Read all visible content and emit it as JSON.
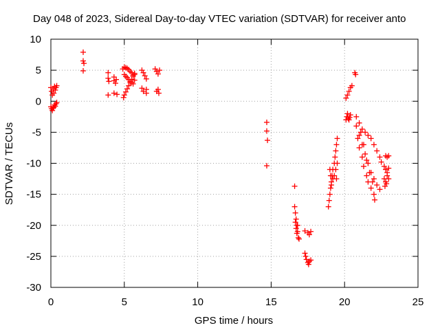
{
  "chart_data": {
    "type": "scatter",
    "title": "Day 048 of 2023, Sidereal Day-to-day VTEC variation (SDTVAR) for receiver anto",
    "xlabel": "GPS time / hours",
    "ylabel": "SDTVAR / TECUs",
    "xlim": [
      0,
      25
    ],
    "ylim": [
      -30,
      10
    ],
    "xticks": [
      0,
      5,
      10,
      15,
      20,
      25
    ],
    "xtick_labels": [
      "0",
      "5",
      "10",
      "15",
      "20",
      "25"
    ],
    "yticks": [
      10,
      5,
      0,
      -5,
      -10,
      -15,
      -20,
      -25,
      -30
    ],
    "ytick_labels": [
      "10",
      "5",
      "0",
      "-5",
      "-10",
      "-15",
      "-20",
      "-25",
      "-30"
    ],
    "grid": true,
    "marker": "+",
    "series": [
      {
        "name": "SDTVAR",
        "color": "#ff0000",
        "points": [
          [
            0.0,
            2.2
          ],
          [
            0.05,
            1.6
          ],
          [
            0.1,
            1.0
          ],
          [
            0.15,
            2.0
          ],
          [
            0.2,
            1.3
          ],
          [
            0.25,
            2.4
          ],
          [
            0.3,
            1.8
          ],
          [
            0.35,
            2.2
          ],
          [
            0.4,
            2.5
          ],
          [
            0.0,
            -0.9
          ],
          [
            0.05,
            -1.2
          ],
          [
            0.1,
            -1.5
          ],
          [
            0.15,
            -1.1
          ],
          [
            0.2,
            -1.0
          ],
          [
            0.25,
            -0.6
          ],
          [
            0.3,
            -0.8
          ],
          [
            0.35,
            -0.4
          ],
          [
            0.4,
            -0.2
          ],
          [
            2.2,
            7.9
          ],
          [
            2.2,
            6.5
          ],
          [
            2.25,
            6.1
          ],
          [
            2.2,
            4.9
          ],
          [
            3.9,
            4.6
          ],
          [
            3.9,
            3.7
          ],
          [
            3.95,
            3.2
          ],
          [
            3.9,
            1.0
          ],
          [
            4.3,
            3.9
          ],
          [
            4.3,
            3.3
          ],
          [
            4.4,
            2.9
          ],
          [
            4.45,
            3.5
          ],
          [
            4.3,
            1.3
          ],
          [
            4.5,
            1.1
          ],
          [
            4.9,
            5.2
          ],
          [
            5.0,
            5.5
          ],
          [
            5.1,
            5.4
          ],
          [
            5.2,
            5.3
          ],
          [
            5.3,
            5.1
          ],
          [
            5.4,
            4.8
          ],
          [
            5.5,
            4.6
          ],
          [
            5.6,
            4.2
          ],
          [
            5.7,
            4.3
          ],
          [
            5.0,
            4.3
          ],
          [
            5.1,
            4.0
          ],
          [
            5.2,
            3.8
          ],
          [
            5.3,
            3.5
          ],
          [
            5.4,
            3.2
          ],
          [
            5.5,
            3.0
          ],
          [
            5.6,
            2.8
          ],
          [
            5.7,
            3.4
          ],
          [
            4.95,
            0.6
          ],
          [
            5.0,
            1.0
          ],
          [
            5.1,
            1.5
          ],
          [
            5.2,
            2.0
          ],
          [
            5.3,
            2.5
          ],
          [
            5.4,
            3.0
          ],
          [
            5.5,
            3.5
          ],
          [
            5.6,
            4.0
          ],
          [
            5.7,
            4.5
          ],
          [
            6.2,
            5.0
          ],
          [
            6.3,
            4.6
          ],
          [
            6.4,
            4.1
          ],
          [
            6.5,
            3.6
          ],
          [
            6.2,
            2.1
          ],
          [
            6.3,
            1.6
          ],
          [
            6.5,
            1.9
          ],
          [
            6.5,
            1.3
          ],
          [
            7.1,
            5.2
          ],
          [
            7.2,
            4.8
          ],
          [
            7.3,
            4.4
          ],
          [
            7.4,
            5.0
          ],
          [
            7.2,
            1.6
          ],
          [
            7.3,
            1.9
          ],
          [
            7.35,
            1.3
          ],
          [
            14.7,
            -3.4
          ],
          [
            14.7,
            -4.8
          ],
          [
            14.75,
            -6.3
          ],
          [
            14.7,
            -10.4
          ],
          [
            16.6,
            -13.7
          ],
          [
            16.6,
            -17.0
          ],
          [
            16.65,
            -18.0
          ],
          [
            16.7,
            -19.0
          ],
          [
            16.75,
            -20.0
          ],
          [
            16.8,
            -21.0
          ],
          [
            16.85,
            -22.0
          ],
          [
            16.9,
            -22.2
          ],
          [
            16.65,
            -19.5
          ],
          [
            16.7,
            -20.5
          ],
          [
            16.75,
            -21.3
          ],
          [
            16.8,
            -20.0
          ],
          [
            17.3,
            -20.9
          ],
          [
            17.5,
            -21.2
          ],
          [
            17.6,
            -21.5
          ],
          [
            17.7,
            -21.0
          ],
          [
            17.3,
            -24.5
          ],
          [
            17.35,
            -25.0
          ],
          [
            17.4,
            -25.5
          ],
          [
            17.5,
            -26.0
          ],
          [
            17.55,
            -26.3
          ],
          [
            17.6,
            -25.8
          ],
          [
            17.7,
            -25.6
          ],
          [
            18.9,
            -17.0
          ],
          [
            18.95,
            -16.0
          ],
          [
            19.0,
            -15.0
          ],
          [
            19.05,
            -14.0
          ],
          [
            19.1,
            -13.0
          ],
          [
            19.15,
            -12.0
          ],
          [
            19.2,
            -11.0
          ],
          [
            19.3,
            -10.0
          ],
          [
            19.35,
            -9.0
          ],
          [
            19.4,
            -8.0
          ],
          [
            19.45,
            -7.0
          ],
          [
            19.5,
            -6.0
          ],
          [
            19.0,
            -11.0
          ],
          [
            19.05,
            -12.0
          ],
          [
            19.1,
            -13.5
          ],
          [
            19.2,
            -12.5
          ],
          [
            19.3,
            -12.0
          ],
          [
            19.4,
            -11.0
          ],
          [
            19.45,
            -12.5
          ],
          [
            19.5,
            -10.0
          ],
          [
            20.1,
            -3.0
          ],
          [
            20.15,
            -2.5
          ],
          [
            20.2,
            -2.0
          ],
          [
            20.25,
            -2.8
          ],
          [
            20.3,
            -3.0
          ],
          [
            20.35,
            -2.6
          ],
          [
            20.4,
            -2.2
          ],
          [
            20.1,
            0.5
          ],
          [
            20.2,
            1.0
          ],
          [
            20.3,
            1.6
          ],
          [
            20.4,
            2.2
          ],
          [
            20.5,
            2.5
          ],
          [
            20.7,
            4.6
          ],
          [
            20.75,
            4.3
          ],
          [
            20.8,
            -2.5
          ],
          [
            21.0,
            -3.5
          ],
          [
            21.2,
            -4.5
          ],
          [
            21.4,
            -5.0
          ],
          [
            21.6,
            -5.5
          ],
          [
            21.8,
            -6.0
          ],
          [
            22.0,
            -7.0
          ],
          [
            22.2,
            -8.0
          ],
          [
            22.4,
            -9.0
          ],
          [
            22.5,
            -9.8
          ],
          [
            20.8,
            -4.0
          ],
          [
            21.0,
            -5.5
          ],
          [
            21.2,
            -7.0
          ],
          [
            21.4,
            -8.5
          ],
          [
            21.6,
            -10.0
          ],
          [
            21.8,
            -11.5
          ],
          [
            22.0,
            -12.5
          ],
          [
            22.2,
            -13.5
          ],
          [
            22.4,
            -14.2
          ],
          [
            20.9,
            -6.0
          ],
          [
            21.0,
            -7.5
          ],
          [
            21.2,
            -9.0
          ],
          [
            21.3,
            -10.5
          ],
          [
            21.5,
            -12.0
          ],
          [
            21.6,
            -13.0
          ],
          [
            21.8,
            -14.0
          ],
          [
            22.0,
            -15.0
          ],
          [
            22.05,
            -15.9
          ],
          [
            21.1,
            -5.0
          ],
          [
            21.3,
            -7.0
          ],
          [
            21.5,
            -9.5
          ],
          [
            21.7,
            -11.5
          ],
          [
            21.9,
            -13.0
          ],
          [
            22.8,
            -8.8
          ],
          [
            22.9,
            -9.0
          ],
          [
            23.0,
            -8.8
          ],
          [
            22.7,
            -10.5
          ],
          [
            22.8,
            -11.0
          ],
          [
            22.9,
            -11.5
          ],
          [
            23.0,
            -10.8
          ],
          [
            22.7,
            -12.5
          ],
          [
            22.8,
            -13.0
          ],
          [
            22.9,
            -12.0
          ],
          [
            23.0,
            -12.5
          ],
          [
            22.75,
            -13.7
          ],
          [
            22.85,
            -13.3
          ]
        ]
      }
    ]
  }
}
